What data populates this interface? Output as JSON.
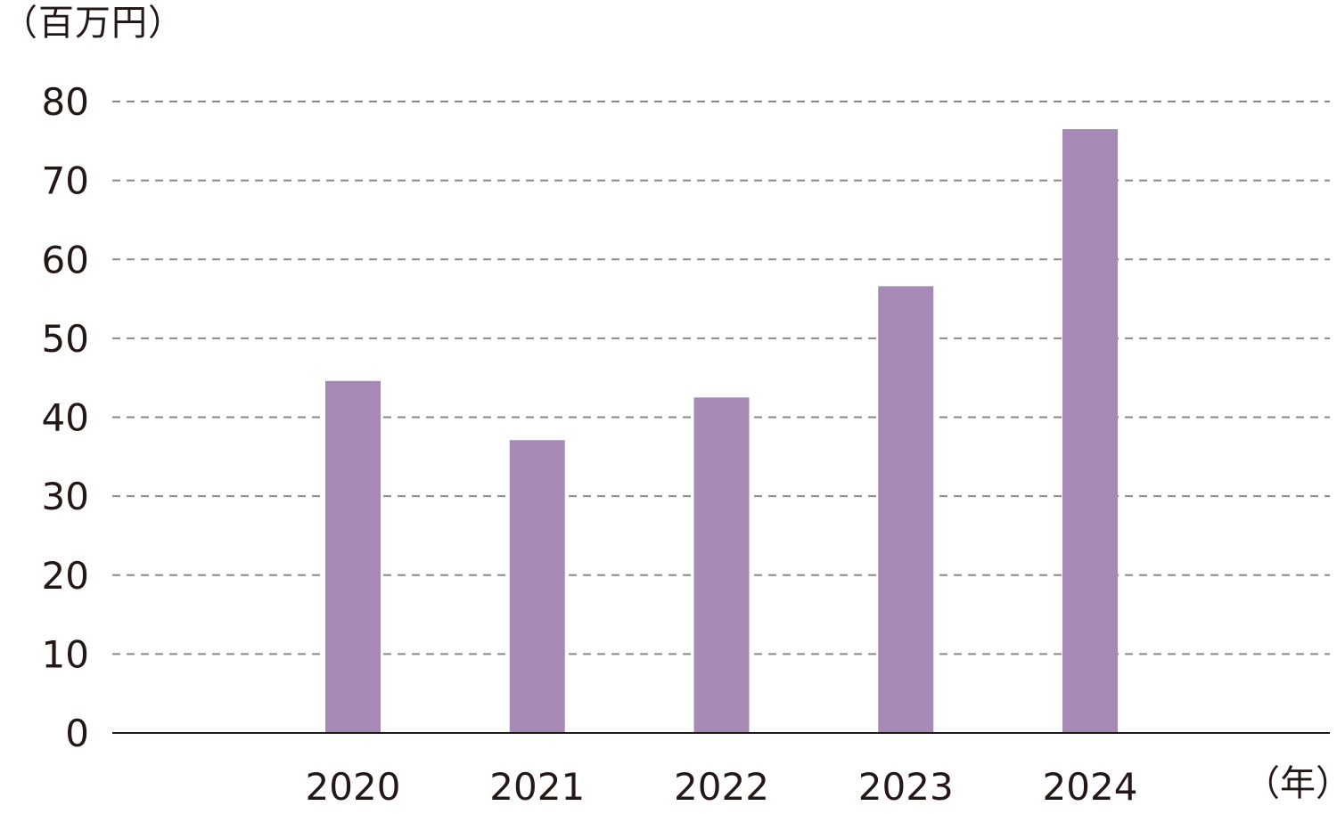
{
  "chart_data": {
    "type": "bar",
    "ylabel": "（百万円）",
    "xlabel": "（年）",
    "categories": [
      "2020",
      "2021",
      "2022",
      "2023",
      "2024"
    ],
    "values": [
      44.6,
      37.1,
      42.5,
      56.6,
      76.5
    ],
    "ylim": [
      0,
      80
    ],
    "yticks": [
      "0",
      "10",
      "20",
      "30",
      "40",
      "50",
      "60",
      "70",
      "80"
    ],
    "grid": true,
    "legend": "none",
    "colors": {
      "bar": "#a48ab4",
      "grid": "#8a8a8a",
      "axis": "#231815",
      "text": "#231815"
    }
  }
}
